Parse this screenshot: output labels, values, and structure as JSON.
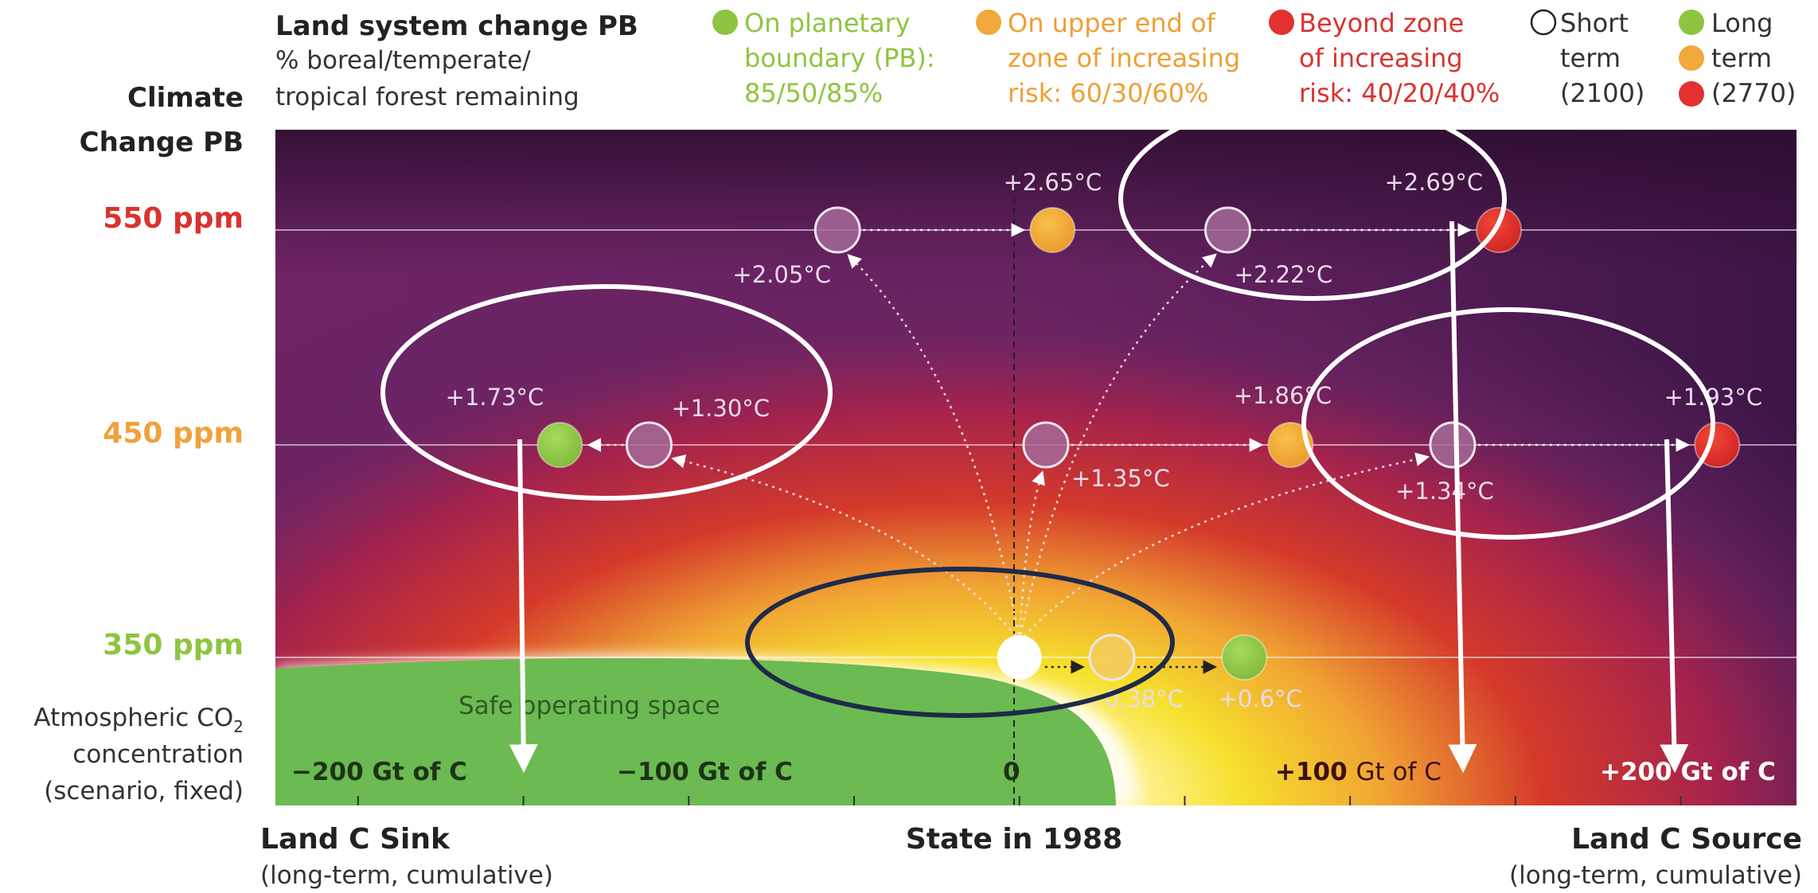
{
  "colors": {
    "green": "#8dc540",
    "orange": "#f0a93a",
    "red": "#e2312e",
    "ppm_550": "#d9332f",
    "ppm_450": "#f0a23a",
    "ppm_350": "#8dc540",
    "green_text": "#8dc540",
    "orange_text": "#ef9f35",
    "red_text": "#d9332f",
    "safe_green": "#6cba52"
  },
  "header": {
    "land_title": "Land system change PB",
    "land_sub_1": "% boreal/temperate/",
    "land_sub_2": "tropical forest remaining",
    "climate_title_1": "Climate",
    "climate_title_2": "Change PB"
  },
  "legend": {
    "green": [
      "On planetary",
      "boundary (PB):",
      "85/50/85%"
    ],
    "orange": [
      "On upper end of",
      "zone of increasing",
      "risk: 60/30/60%"
    ],
    "red": [
      "Beyond zone",
      "of increasing",
      "risk: 40/20/40%"
    ],
    "short": [
      "Short",
      "term",
      "(2100)"
    ],
    "long": [
      "Long",
      "term",
      "(2770)"
    ]
  },
  "y_axis": {
    "ppm_550": "550 ppm",
    "ppm_450": "450 ppm",
    "ppm_350": "350 ppm",
    "desc_1": "Atmospheric CO",
    "desc_sub": "2",
    "desc_2": "concentration",
    "desc_3": "(scenario, fixed)"
  },
  "safe_space": "Safe operating space",
  "gt_labels": {
    "minus200": "−200 Gt of C",
    "minus100": "−100 Gt of C",
    "zero": "0",
    "plus100_bold": "+100",
    "plus100_rest": "Gt of C",
    "plus200_bold": "+200",
    "plus200_rest": "Gt of C"
  },
  "x_axis": {
    "left_title": "Land C Sink",
    "left_sub": "(long-term, cumulative)",
    "center_title": "State in 1988",
    "right_title": "Land C Source",
    "right_sub": "(long-term, cumulative)"
  },
  "chart_data": {
    "type": "scatter",
    "x_unit": "Gt of C",
    "y_unit": "ppm",
    "xlim": [
      -225,
      235
    ],
    "y_levels": [
      350,
      450,
      550
    ],
    "x_ticks": [
      -200,
      -150,
      -100,
      -50,
      0,
      50,
      100,
      150,
      200
    ],
    "origin": {
      "x": 0,
      "y": 350,
      "term": "1988"
    },
    "points": [
      {
        "x": -55,
        "y": 550,
        "term": "short",
        "label": "+2.05°C"
      },
      {
        "x": 10,
        "y": 550,
        "term": "long",
        "status": "orange",
        "label": "+2.65°C"
      },
      {
        "x": 63,
        "y": 550,
        "term": "short",
        "label": "+2.22°C"
      },
      {
        "x": 145,
        "y": 550,
        "term": "long",
        "status": "red",
        "label": "+2.69°C"
      },
      {
        "x": -112,
        "y": 450,
        "term": "short",
        "label": "+1.30°C"
      },
      {
        "x": -139,
        "y": 450,
        "term": "long",
        "status": "green",
        "label": "+1.73°C"
      },
      {
        "x": 8,
        "y": 450,
        "term": "short",
        "label": "+1.35°C"
      },
      {
        "x": 82,
        "y": 450,
        "term": "long",
        "status": "orange",
        "label": "+1.86°C"
      },
      {
        "x": 131,
        "y": 450,
        "term": "short",
        "label": "+1.34°C"
      },
      {
        "x": 211,
        "y": 450,
        "term": "long",
        "status": "red",
        "label": "+1.93°C"
      },
      {
        "x": 28,
        "y": 350,
        "term": "short",
        "label": "+0.38°C"
      },
      {
        "x": 68,
        "y": 350,
        "term": "long",
        "status": "green",
        "label": "+0.6°C"
      }
    ]
  }
}
